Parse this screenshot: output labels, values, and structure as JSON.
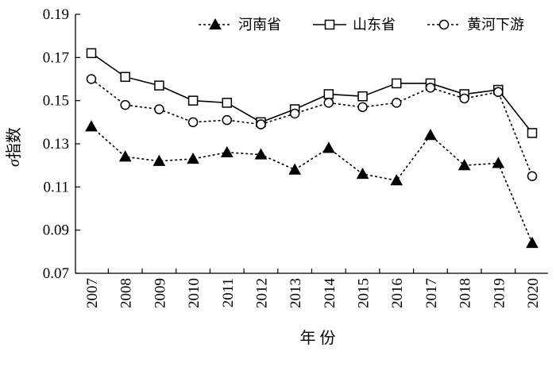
{
  "chart_data": {
    "type": "line",
    "title": "",
    "xlabel": "年 份",
    "ylabel_prefix": "σ",
    "ylabel": "指数",
    "x": [
      "2007",
      "2008",
      "2009",
      "2010",
      "2011",
      "2012",
      "2013",
      "2014",
      "2015",
      "2016",
      "2017",
      "2018",
      "2019",
      "2020"
    ],
    "ylim": [
      0.07,
      0.19
    ],
    "yticks": [
      "0.07",
      "0.09",
      "0.11",
      "0.13",
      "0.15",
      "0.17",
      "0.19"
    ],
    "grid": false,
    "legend_position": "top",
    "series": [
      {
        "name": "河南省",
        "marker": "filled-triangle",
        "line_style": "dotted",
        "color": "#000000",
        "values": [
          0.138,
          0.124,
          0.122,
          0.123,
          0.126,
          0.125,
          0.118,
          0.128,
          0.116,
          0.113,
          0.134,
          0.12,
          0.121,
          0.084
        ]
      },
      {
        "name": "山东省",
        "marker": "open-square",
        "line_style": "solid",
        "color": "#000000",
        "values": [
          0.172,
          0.161,
          0.157,
          0.15,
          0.149,
          0.14,
          0.146,
          0.153,
          0.152,
          0.158,
          0.158,
          0.153,
          0.155,
          0.135
        ]
      },
      {
        "name": "黄河下游",
        "marker": "open-circle",
        "line_style": "dotted",
        "color": "#000000",
        "values": [
          0.16,
          0.148,
          0.146,
          0.14,
          0.141,
          0.139,
          0.144,
          0.149,
          0.147,
          0.149,
          0.156,
          0.151,
          0.154,
          0.115
        ]
      }
    ]
  }
}
